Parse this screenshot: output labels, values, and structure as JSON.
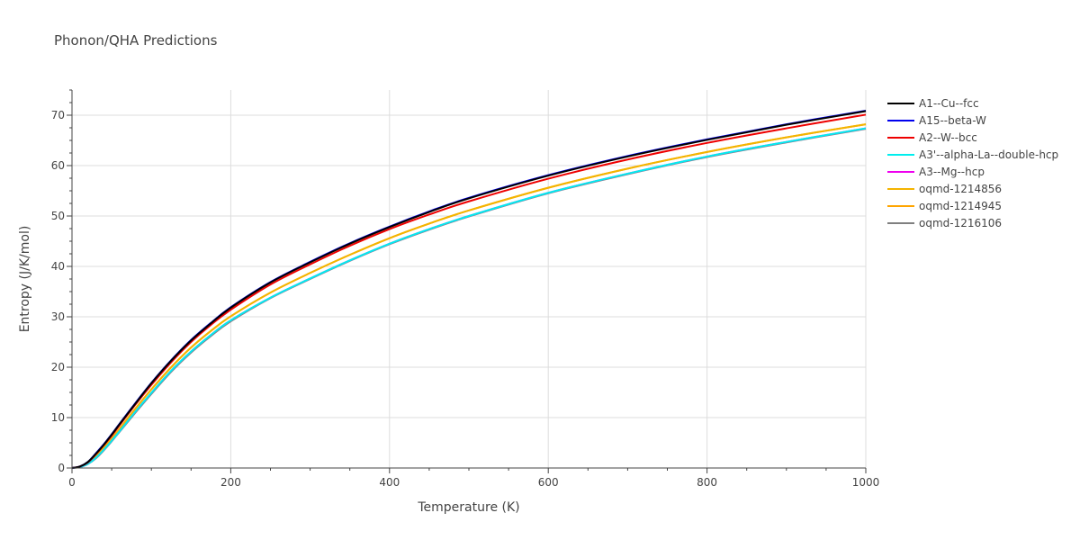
{
  "chart_data": {
    "type": "line",
    "title": "Phonon/QHA Predictions",
    "xlabel": "Temperature (K)",
    "ylabel": "Entropy (J/K/mol)",
    "xlim": [
      0,
      1000
    ],
    "ylim": [
      0,
      75
    ],
    "xticks": [
      0,
      200,
      400,
      600,
      800,
      1000
    ],
    "yticks": [
      0,
      10,
      20,
      30,
      40,
      50,
      60,
      70
    ],
    "grid": true,
    "legend_position": "right",
    "x": [
      0,
      10,
      20,
      30,
      40,
      50,
      60,
      80,
      100,
      125,
      150,
      175,
      200,
      250,
      300,
      350,
      400,
      450,
      500,
      600,
      700,
      800,
      900,
      1000
    ],
    "series": [
      {
        "name": "A1--Cu--fcc",
        "color": "#000000",
        "values": [
          0,
          0.3,
          1.2,
          2.8,
          4.6,
          6.6,
          8.7,
          12.8,
          16.8,
          21.3,
          25.3,
          28.7,
          31.8,
          36.8,
          40.8,
          44.5,
          47.8,
          50.8,
          53.5,
          58.0,
          61.8,
          65.1,
          68.1,
          70.8
        ]
      },
      {
        "name": "A15--beta-W",
        "color": "#0000ee",
        "values": [
          0,
          0.3,
          1.2,
          2.9,
          4.7,
          6.7,
          8.8,
          12.9,
          16.9,
          21.4,
          25.4,
          28.8,
          31.9,
          36.9,
          40.9,
          44.6,
          47.9,
          50.9,
          53.6,
          58.1,
          61.9,
          65.2,
          68.2,
          70.9
        ]
      },
      {
        "name": "A2--W--bcc",
        "color": "#ee0000",
        "values": [
          0,
          0.3,
          1.1,
          2.7,
          4.5,
          6.4,
          8.5,
          12.6,
          16.5,
          21.0,
          25.0,
          28.4,
          31.4,
          36.4,
          40.4,
          44.1,
          47.4,
          50.3,
          52.9,
          57.4,
          61.2,
          64.5,
          67.4,
          70.1
        ]
      },
      {
        "name": "A3'--alpha-La--double-hcp",
        "color": "#00eeee",
        "values": [
          0,
          0.2,
          0.8,
          2.0,
          3.6,
          5.4,
          7.3,
          11.2,
          14.9,
          19.3,
          23.1,
          26.4,
          29.3,
          33.8,
          37.6,
          41.2,
          44.5,
          47.4,
          50.0,
          54.6,
          58.4,
          61.8,
          64.7,
          67.4
        ]
      },
      {
        "name": "A3--Mg--hcp",
        "color": "#ee00ee",
        "values": [
          0,
          0.2,
          0.8,
          2.0,
          3.6,
          5.4,
          7.3,
          11.2,
          14.9,
          19.3,
          23.1,
          26.4,
          29.3,
          33.8,
          37.6,
          41.2,
          44.5,
          47.4,
          50.0,
          54.6,
          58.4,
          61.8,
          64.7,
          67.4
        ]
      },
      {
        "name": "oqmd-1214856",
        "color": "#f4b400",
        "values": [
          0,
          0.2,
          0.9,
          2.3,
          4.0,
          5.8,
          7.8,
          11.8,
          15.6,
          20.0,
          23.9,
          27.2,
          30.1,
          34.8,
          38.7,
          42.3,
          45.6,
          48.5,
          51.1,
          55.6,
          59.4,
          62.7,
          65.6,
          68.2
        ]
      },
      {
        "name": "oqmd-1214945",
        "color": "#ffa500",
        "values": [
          0,
          0.2,
          0.9,
          2.3,
          4.0,
          5.8,
          7.8,
          11.8,
          15.6,
          20.0,
          23.9,
          27.2,
          30.1,
          34.8,
          38.7,
          42.3,
          45.6,
          48.5,
          51.1,
          55.6,
          59.4,
          62.7,
          65.6,
          68.2
        ]
      },
      {
        "name": "oqmd-1216106",
        "color": "#808080",
        "values": [
          0,
          0.2,
          0.8,
          1.9,
          3.5,
          5.3,
          7.2,
          11.0,
          14.7,
          19.1,
          22.9,
          26.2,
          29.1,
          33.7,
          37.5,
          41.1,
          44.4,
          47.3,
          49.9,
          54.5,
          58.3,
          61.7,
          64.6,
          67.3
        ]
      }
    ]
  }
}
